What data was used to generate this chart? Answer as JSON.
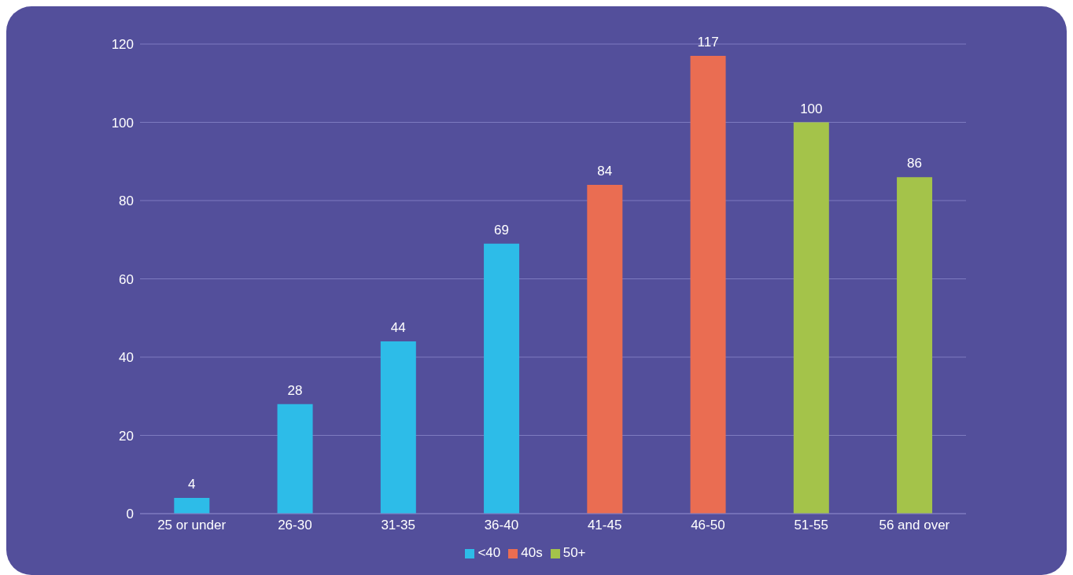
{
  "chart_data": {
    "type": "bar",
    "stacked": true,
    "categories": [
      "25 or under",
      "26-30",
      "31-35",
      "36-40",
      "41-45",
      "46-50",
      "51-55",
      "56 and over"
    ],
    "series": [
      {
        "name": "<40",
        "color": "#2dbce8",
        "values": [
          4,
          28,
          44,
          69,
          null,
          null,
          null,
          null
        ]
      },
      {
        "name": "40s",
        "color": "#ea6d52",
        "values": [
          null,
          null,
          null,
          null,
          84,
          117,
          null,
          null
        ]
      },
      {
        "name": "50+",
        "color": "#a4c34a",
        "values": [
          null,
          null,
          null,
          null,
          null,
          null,
          100,
          86
        ]
      }
    ],
    "ylim": [
      0,
      120
    ],
    "yticks": [
      0,
      20,
      40,
      60,
      80,
      100,
      120
    ],
    "grid": "y",
    "legend": "bottom",
    "data_labels": true
  }
}
